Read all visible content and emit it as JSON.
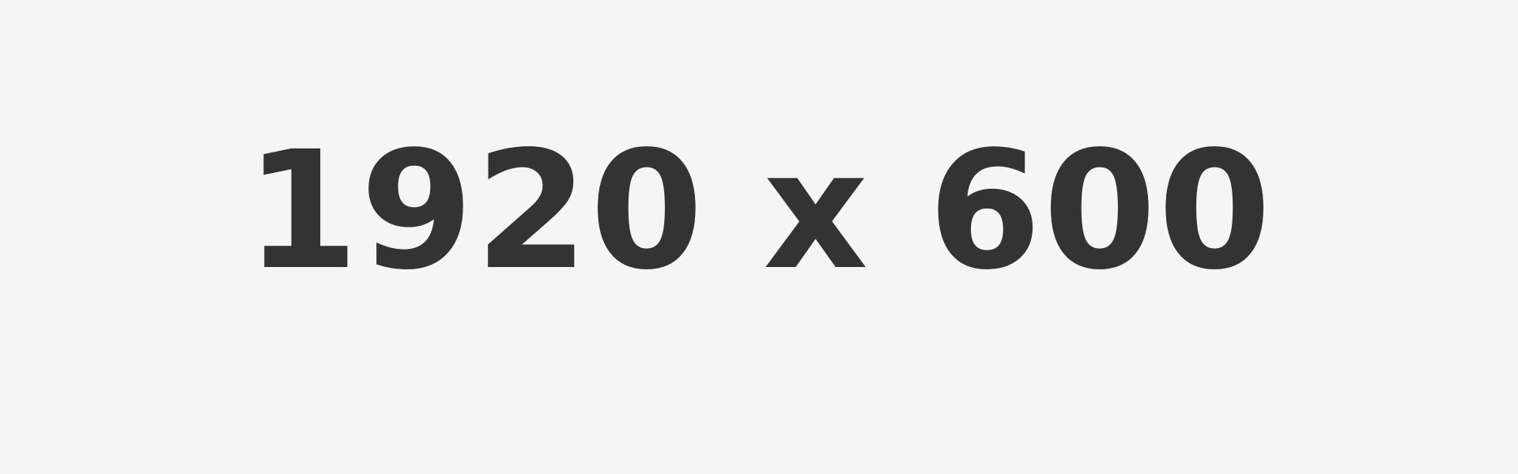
{
  "placeholder": {
    "text": "1920 x 600",
    "text_color": "#333333",
    "background_color": "#f5f5f5"
  }
}
